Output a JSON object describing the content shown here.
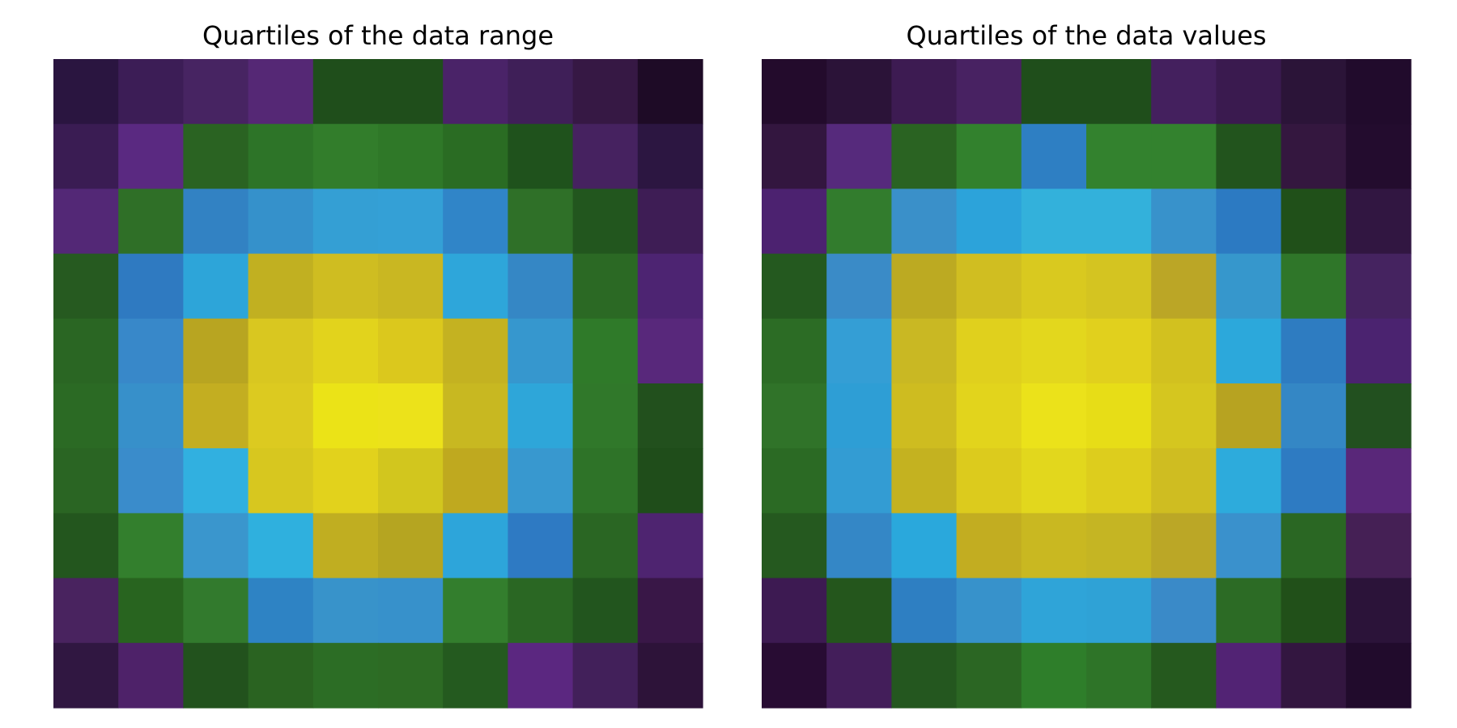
{
  "chart_data": [
    {
      "type": "heatmap",
      "title": "Quartiles of the data range",
      "grid": false,
      "rows": 10,
      "cols": 10,
      "values": [
        [
          0,
          0,
          1,
          1,
          2,
          2,
          1,
          1,
          0,
          0
        ],
        [
          1,
          1,
          2,
          2,
          2,
          2,
          2,
          2,
          1,
          0
        ],
        [
          1,
          2,
          3,
          3,
          3,
          3,
          3,
          2,
          2,
          1
        ],
        [
          2,
          3,
          3,
          4,
          4,
          4,
          3,
          3,
          2,
          1
        ],
        [
          2,
          3,
          4,
          4,
          4,
          4,
          4,
          3,
          2,
          1
        ],
        [
          2,
          3,
          4,
          4,
          4,
          4,
          4,
          3,
          2,
          2
        ],
        [
          2,
          3,
          3,
          4,
          4,
          4,
          4,
          3,
          2,
          2
        ],
        [
          2,
          2,
          3,
          3,
          4,
          4,
          3,
          3,
          2,
          1
        ],
        [
          1,
          2,
          2,
          3,
          3,
          3,
          2,
          2,
          2,
          0
        ],
        [
          0,
          1,
          2,
          2,
          2,
          2,
          2,
          1,
          1,
          0
        ]
      ],
      "cell_colors": [
        [
          "#2a1540",
          "#3c1d56",
          "#472462",
          "#552875",
          "#1f4e1b",
          "#1f4e1b",
          "#4a2368",
          "#3f1f58",
          "#361844",
          "#1e0b26"
        ],
        [
          "#3a1c53",
          "#5a2981",
          "#2a6322",
          "#2d7428",
          "#327d2b",
          "#2f7828",
          "#2a6c23",
          "#1f521c",
          "#462260",
          "#2c1641"
        ],
        [
          "#532876",
          "#2f6f27",
          "#3282c3",
          "#3591cb",
          "#349fd4",
          "#34a0d6",
          "#3085c8",
          "#2f7028",
          "#22561e",
          "#3e1d55"
        ],
        [
          "#265a20",
          "#2f7ac1",
          "#2da5d9",
          "#c1b021",
          "#cfbd21",
          "#c9b722",
          "#2ea6da",
          "#3587c5",
          "#2b6924",
          "#4d2472"
        ],
        [
          "#2a6623",
          "#3888c9",
          "#b8a521",
          "#d9c720",
          "#e2d31c",
          "#dbc81d",
          "#c4b221",
          "#3697ce",
          "#2f7a29",
          "#58287b"
        ],
        [
          "#2b6a24",
          "#3790ca",
          "#c3ae21",
          "#dcca20",
          "#ebe317",
          "#ece21a",
          "#c8b821",
          "#2ea6d9",
          "#30782a",
          "#22501d"
        ],
        [
          "#2a6523",
          "#3a8ccb",
          "#31b0e0",
          "#d7c71f",
          "#e2d21c",
          "#d2c61e",
          "#bfa91f",
          "#3898cf",
          "#2e7328",
          "#1f4d1a"
        ],
        [
          "#23561e",
          "#337f2d",
          "#3a96cd",
          "#2fb0de",
          "#c0ae21",
          "#b5a521",
          "#2da5da",
          "#2e7ac3",
          "#2a6623",
          "#4e2470"
        ],
        [
          "#49235f",
          "#28641f",
          "#327a2d",
          "#2e83c4",
          "#3893ca",
          "#3791cb",
          "#337e2d",
          "#2a6723",
          "#22551e",
          "#391747"
        ],
        [
          "#301741",
          "#4e2269",
          "#22521d",
          "#2a6321",
          "#2c6d25",
          "#2d6b24",
          "#245a1f",
          "#5b2780",
          "#42205a",
          "#2d1339"
        ]
      ]
    },
    {
      "type": "heatmap",
      "title": "Quartiles of the data values",
      "grid": false,
      "rows": 10,
      "cols": 10,
      "values": [
        [
          0,
          0,
          0,
          0,
          1,
          1,
          0,
          0,
          0,
          0
        ],
        [
          0,
          0,
          1,
          1,
          2,
          1,
          1,
          1,
          0,
          0
        ],
        [
          0,
          1,
          2,
          2,
          2,
          2,
          2,
          2,
          1,
          0
        ],
        [
          1,
          2,
          3,
          3,
          3,
          3,
          3,
          2,
          1,
          0
        ],
        [
          1,
          2,
          3,
          3,
          3,
          3,
          3,
          2,
          2,
          0
        ],
        [
          1,
          2,
          3,
          3,
          3,
          3,
          3,
          3,
          2,
          1
        ],
        [
          1,
          2,
          3,
          3,
          3,
          3,
          3,
          2,
          2,
          0
        ],
        [
          1,
          2,
          2,
          3,
          3,
          3,
          3,
          2,
          1,
          0
        ],
        [
          0,
          1,
          2,
          2,
          2,
          2,
          2,
          1,
          1,
          0
        ],
        [
          0,
          0,
          1,
          1,
          1,
          1,
          1,
          0,
          0,
          0
        ]
      ],
      "cell_colors": [
        [
          "#230b2c",
          "#2b1338",
          "#3d1b52",
          "#482262",
          "#1f4e1b",
          "#1f4e1b",
          "#44205e",
          "#3a1a4f",
          "#2b1438",
          "#210b2c"
        ],
        [
          "#33163f",
          "#562a7c",
          "#2a6322",
          "#32812d",
          "#2e7fc3",
          "#33822e",
          "#33822e",
          "#22541d",
          "#34173f",
          "#230c2e"
        ],
        [
          "#4c2270",
          "#327c2d",
          "#3a90c9",
          "#2ca3da",
          "#33b1db",
          "#33b1db",
          "#3892cb",
          "#2c7ac2",
          "#205019",
          "#311641"
        ],
        [
          "#24591f",
          "#3a8bc7",
          "#bcaa22",
          "#d0be21",
          "#d9c91f",
          "#d4c421",
          "#bba626",
          "#3697cc",
          "#2f7629",
          "#452360"
        ],
        [
          "#2c6c25",
          "#349ed5",
          "#c9b823",
          "#e0d01d",
          "#e3d71d",
          "#e1d01d",
          "#d2c11f",
          "#2ca8db",
          "#2e7cc1",
          "#4b2370"
        ],
        [
          "#307329",
          "#2e9ed5",
          "#cebc20",
          "#e2d41c",
          "#ebe21a",
          "#e7dd17",
          "#d5c61f",
          "#b7a321",
          "#3487c5",
          "#22501f"
        ],
        [
          "#2b6a24",
          "#339cd3",
          "#c4b220",
          "#dccb1d",
          "#e2d71d",
          "#ddcd1d",
          "#cfbd21",
          "#2dabdc",
          "#2e7bc2",
          "#592779"
        ],
        [
          "#25591f",
          "#3487c6",
          "#2aa8dc",
          "#c2ad21",
          "#c9b821",
          "#c5b523",
          "#bba726",
          "#3a91cc",
          "#2a6723",
          "#452055"
        ],
        [
          "#3d1a52",
          "#24561c",
          "#2e7fc2",
          "#3792cb",
          "#2fa4d8",
          "#2fa2d6",
          "#3a8ac8",
          "#2c6b25",
          "#215019",
          "#2b1339"
        ],
        [
          "#280c33",
          "#431e5a",
          "#24571f",
          "#2b6623",
          "#2e7e2a",
          "#2e7428",
          "#25591e",
          "#522374",
          "#331640",
          "#210b2c"
        ]
      ]
    }
  ]
}
